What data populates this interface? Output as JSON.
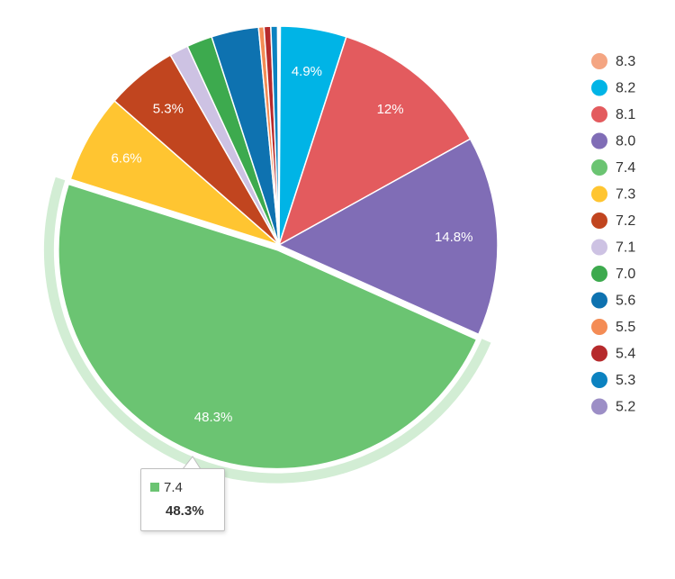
{
  "chart_data": {
    "type": "pie",
    "slices": [
      {
        "label": "8.3",
        "value": 0.1,
        "color": "#F4A582",
        "display": ""
      },
      {
        "label": "8.2",
        "value": 4.9,
        "color": "#00B4E6",
        "display": "4.9%"
      },
      {
        "label": "8.1",
        "value": 12.0,
        "color": "#E35B5E",
        "display": "12%"
      },
      {
        "label": "8.0",
        "value": 14.8,
        "color": "#806DB6",
        "display": "14.8%"
      },
      {
        "label": "7.4",
        "value": 48.3,
        "color": "#6BC472",
        "display": "48.3%",
        "highlighted": true
      },
      {
        "label": "7.3",
        "value": 6.6,
        "color": "#FFC531",
        "display": "6.6%"
      },
      {
        "label": "7.2",
        "value": 5.3,
        "color": "#C1451F",
        "display": "5.3%"
      },
      {
        "label": "7.1",
        "value": 1.4,
        "color": "#CDC2E3",
        "display": ""
      },
      {
        "label": "7.0",
        "value": 1.9,
        "color": "#3DAA4E",
        "display": ""
      },
      {
        "label": "5.6",
        "value": 3.5,
        "color": "#0E72B0",
        "display": ""
      },
      {
        "label": "5.5",
        "value": 0.4,
        "color": "#F48C55",
        "display": ""
      },
      {
        "label": "5.4",
        "value": 0.5,
        "color": "#B62A2C",
        "display": ""
      },
      {
        "label": "5.3",
        "value": 0.5,
        "color": "#0C82C0",
        "display": ""
      },
      {
        "label": "5.2",
        "value": 0.1,
        "color": "#9C8EC6",
        "display": ""
      }
    ],
    "legend_position": "right"
  },
  "tooltip": {
    "label": "7.4",
    "value": "48.3%",
    "color": "#6BC472"
  }
}
